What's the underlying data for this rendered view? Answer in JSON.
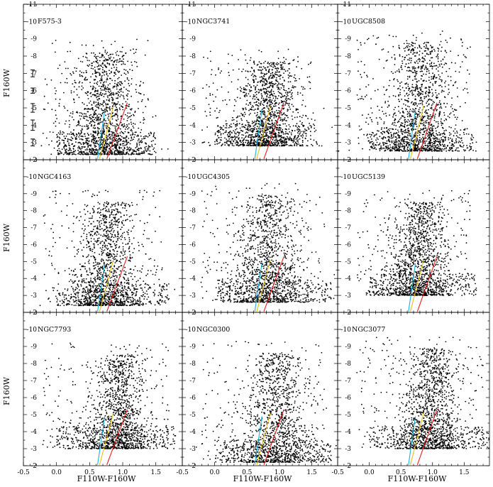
{
  "chart_data": {
    "type": "scatter",
    "layout": "3x3 grid of color-magnitude diagrams with shared axes",
    "xlabel": "F110W-F160W",
    "ylabel": "F160W",
    "xlim": [
      -0.5,
      1.9
    ],
    "ylim": [
      -2,
      -11
    ],
    "y_axis_inverted": true,
    "x_ticks": [
      "-0.5",
      "0.0",
      "0.5",
      "1.0",
      "1.5"
    ],
    "x_tick_values": [
      -0.5,
      0.0,
      0.5,
      1.0,
      1.5
    ],
    "y_ticks": [
      "-2",
      "-3",
      "-4",
      "-5",
      "-6",
      "-7",
      "-8",
      "-9",
      "-10",
      "-11"
    ],
    "y_tick_values": [
      -2,
      -3,
      -4,
      -5,
      -6,
      -7,
      -8,
      -9,
      -10,
      -11
    ],
    "grid": false,
    "line_colors": {
      "cyan": "#19b5d6",
      "yellow": "#e3c21a",
      "red": "#ee1c1c"
    },
    "lines": [
      {
        "color": "cyan",
        "points": [
          [
            0.62,
            -2.05
          ],
          [
            0.73,
            -4.9
          ]
        ]
      },
      {
        "color": "yellow",
        "points": [
          [
            0.65,
            -2.05
          ],
          [
            0.86,
            -5.1
          ]
        ]
      },
      {
        "color": "red",
        "points": [
          [
            0.76,
            -2.05
          ],
          [
            1.07,
            -5.3
          ]
        ]
      }
    ],
    "error_bars": {
      "panel": "F575-3",
      "points": [
        {
          "x": -0.36,
          "y": -7.0,
          "yerr": 0.2
        },
        {
          "x": -0.36,
          "y": -6.0,
          "yerr": 0.15
        },
        {
          "x": -0.36,
          "y": -5.0,
          "yerr": 0.25
        },
        {
          "x": -0.36,
          "y": -4.0,
          "yerr": 0.3
        },
        {
          "x": -0.36,
          "y": -3.0,
          "yerr": 0.2
        }
      ]
    },
    "panels": [
      {
        "name": "F575-3",
        "locus_color": 0.68,
        "tip_mag": -9.8,
        "rgb_floor": -2.3,
        "spread": 0.32,
        "red_extent": 1.5
      },
      {
        "name": "NGC3741",
        "locus_color": 0.78,
        "tip_mag": -9.2,
        "rgb_floor": -2.8,
        "spread": 0.3,
        "red_extent": 1.6
      },
      {
        "name": "UGC8508",
        "locus_color": 0.74,
        "tip_mag": -10.3,
        "rgb_floor": -2.5,
        "spread": 0.34,
        "red_extent": 1.7
      },
      {
        "name": "NGC4163",
        "locus_color": 0.72,
        "tip_mag": -10.0,
        "rgb_floor": -2.4,
        "spread": 0.3,
        "red_extent": 1.7
      },
      {
        "name": "UGC4305",
        "locus_color": 0.78,
        "tip_mag": -10.4,
        "rgb_floor": -2.6,
        "spread": 0.34,
        "red_extent": 1.8
      },
      {
        "name": "UGC5139",
        "locus_color": 0.75,
        "tip_mag": -10.0,
        "rgb_floor": -3.0,
        "spread": 0.3,
        "red_extent": 1.7
      },
      {
        "name": "NGC7793",
        "locus_color": 0.88,
        "tip_mag": -10.0,
        "rgb_floor": -3.0,
        "spread": 0.28,
        "red_extent": 1.8
      },
      {
        "name": "NGC0300",
        "locus_color": 0.88,
        "tip_mag": -10.1,
        "rgb_floor": -2.2,
        "spread": 0.34,
        "red_extent": 1.8
      },
      {
        "name": "NGC3077",
        "locus_color": 0.92,
        "tip_mag": -10.4,
        "rgb_floor": -3.0,
        "spread": 0.3,
        "red_extent": 1.9
      }
    ]
  }
}
